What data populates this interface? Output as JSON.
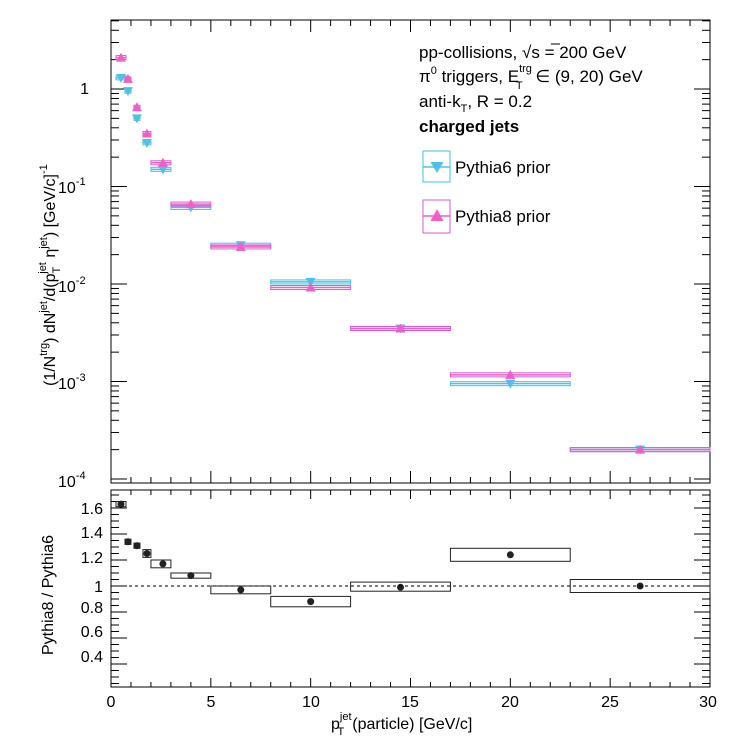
{
  "colors": {
    "pythia6": "#4fc1e9",
    "pythia6_box": "#3ec7d4",
    "pythia8": "#ef5fc7",
    "pythia8_box": "#d65bd4",
    "ratio": "#222222"
  },
  "legend": {
    "line1_a": "pp-collisions, ",
    "line1_sqrt": "√",
    "line1_b": "s = 200 GeV",
    "line2_a": "π",
    "line2_sup0": "0",
    "line2_b": " triggers, E",
    "line2_sup": "trg",
    "line2_sub": "T",
    "line2_c": " ∈ (9, 20) GeV",
    "line3_a": "anti-k",
    "line3_sub": "T",
    "line3_b": ", R = 0.2",
    "line4": "charged jets",
    "entry1": "Pythia6 prior",
    "entry2": "Pythia8 prior"
  },
  "axes": {
    "top_ylabel_a": "(1/N",
    "top_ylabel_sup1": "trg",
    "top_ylabel_b": ") dN",
    "top_ylabel_sup2": "jet",
    "top_ylabel_c": "/d(p",
    "top_ylabel_sub3": "T",
    "top_ylabel_sup3": "jet",
    "top_ylabel_d": " η",
    "top_ylabel_sup4": "jet",
    "top_ylabel_e": ") [GeV/c]",
    "top_ylabel_sup5": "-1",
    "bottom_ylabel": "Pythia8 / Pythia6",
    "xlabel_a": "p",
    "xlabel_sup": "jet",
    "xlabel_sub": "T",
    "xlabel_b": "(particle) [GeV/c]",
    "top_ticks": [
      {
        "base": "1",
        "exp": ""
      },
      {
        "base": "10",
        "exp": "-1"
      },
      {
        "base": "10",
        "exp": "-2"
      },
      {
        "base": "10",
        "exp": "-3"
      },
      {
        "base": "10",
        "exp": "-4"
      }
    ],
    "bottom_ticks": [
      "1.6",
      "1.4",
      "1.2",
      "1",
      "0.8",
      "0.6",
      "0.4"
    ],
    "x_ticks": [
      "0",
      "5",
      "10",
      "15",
      "20",
      "25",
      "30"
    ]
  },
  "chart_data": [
    {
      "type": "scatter",
      "log_y": true,
      "xlim": [
        0,
        30
      ],
      "ylim": [
        6e-05,
        4
      ],
      "series": [
        {
          "name": "Pythia6 prior",
          "marker": "triangle-down",
          "points": [
            {
              "x": 0.5,
              "xlo": 0.25,
              "xhi": 0.75,
              "y": 1.3
            },
            {
              "x": 0.85,
              "xlo": 0.7,
              "xhi": 1.0,
              "y": 0.95
            },
            {
              "x": 1.3,
              "xlo": 1.15,
              "xhi": 1.45,
              "y": 0.5
            },
            {
              "x": 1.8,
              "xlo": 1.6,
              "xhi": 2.0,
              "y": 0.28
            },
            {
              "x": 2.6,
              "xlo": 2.0,
              "xhi": 3.0,
              "y": 0.15
            },
            {
              "x": 4.0,
              "xlo": 3.0,
              "xhi": 5.0,
              "y": 0.061
            },
            {
              "x": 6.5,
              "xlo": 5.0,
              "xhi": 8.0,
              "y": 0.025
            },
            {
              "x": 10.0,
              "xlo": 8.0,
              "xhi": 12.0,
              "y": 0.0105
            },
            {
              "x": 14.5,
              "xlo": 12.0,
              "xhi": 17.0,
              "y": 0.0035
            },
            {
              "x": 20.0,
              "xlo": 17.0,
              "xhi": 23.0,
              "y": 0.00095
            },
            {
              "x": 26.5,
              "xlo": 23.0,
              "xhi": 30.0,
              "y": 0.0002
            }
          ]
        },
        {
          "name": "Pythia8 prior",
          "marker": "triangle-up",
          "points": [
            {
              "x": 0.5,
              "xlo": 0.25,
              "xhi": 0.75,
              "y": 2.1
            },
            {
              "x": 0.85,
              "xlo": 0.7,
              "xhi": 1.0,
              "y": 1.27
            },
            {
              "x": 1.3,
              "xlo": 1.15,
              "xhi": 1.45,
              "y": 0.65
            },
            {
              "x": 1.8,
              "xlo": 1.6,
              "xhi": 2.0,
              "y": 0.35
            },
            {
              "x": 2.6,
              "xlo": 2.0,
              "xhi": 3.0,
              "y": 0.175
            },
            {
              "x": 4.0,
              "xlo": 3.0,
              "xhi": 5.0,
              "y": 0.066
            },
            {
              "x": 6.5,
              "xlo": 5.0,
              "xhi": 8.0,
              "y": 0.024
            },
            {
              "x": 10.0,
              "xlo": 8.0,
              "xhi": 12.0,
              "y": 0.0092
            },
            {
              "x": 14.5,
              "xlo": 12.0,
              "xhi": 17.0,
              "y": 0.0035
            },
            {
              "x": 20.0,
              "xlo": 17.0,
              "xhi": 23.0,
              "y": 0.00117
            },
            {
              "x": 26.5,
              "xlo": 23.0,
              "xhi": 30.0,
              "y": 0.0002
            }
          ]
        }
      ]
    },
    {
      "type": "scatter",
      "xlim": [
        0,
        30
      ],
      "ylim": [
        0.2,
        1.8
      ],
      "reference_line": 1.0,
      "series": [
        {
          "name": "",
          "marker": "circle",
          "points": [
            {
              "x": 0.5,
              "xlo": 0.25,
              "xhi": 0.75,
              "y": 1.63,
              "ylo": 1.61,
              "yhi": 1.65
            },
            {
              "x": 0.85,
              "xlo": 0.7,
              "xhi": 1.0,
              "y": 1.34,
              "ylo": 1.32,
              "yhi": 1.36
            },
            {
              "x": 1.3,
              "xlo": 1.15,
              "xhi": 1.45,
              "y": 1.31,
              "ylo": 1.29,
              "yhi": 1.33
            },
            {
              "x": 1.8,
              "xlo": 1.6,
              "xhi": 2.0,
              "y": 1.25,
              "ylo": 1.22,
              "yhi": 1.28
            },
            {
              "x": 2.6,
              "xlo": 2.0,
              "xhi": 3.0,
              "y": 1.17,
              "ylo": 1.14,
              "yhi": 1.2
            },
            {
              "x": 4.0,
              "xlo": 3.0,
              "xhi": 5.0,
              "y": 1.08,
              "ylo": 1.06,
              "yhi": 1.1
            },
            {
              "x": 6.5,
              "xlo": 5.0,
              "xhi": 8.0,
              "y": 0.97,
              "ylo": 0.94,
              "yhi": 1.0
            },
            {
              "x": 10.0,
              "xlo": 8.0,
              "xhi": 12.0,
              "y": 0.88,
              "ylo": 0.84,
              "yhi": 0.92
            },
            {
              "x": 14.5,
              "xlo": 12.0,
              "xhi": 17.0,
              "y": 0.99,
              "ylo": 0.96,
              "yhi": 1.03
            },
            {
              "x": 20.0,
              "xlo": 17.0,
              "xhi": 23.0,
              "y": 1.24,
              "ylo": 1.19,
              "yhi": 1.29
            },
            {
              "x": 26.5,
              "xlo": 23.0,
              "xhi": 30.0,
              "y": 1.0,
              "ylo": 0.95,
              "yhi": 1.05
            }
          ]
        }
      ]
    }
  ]
}
